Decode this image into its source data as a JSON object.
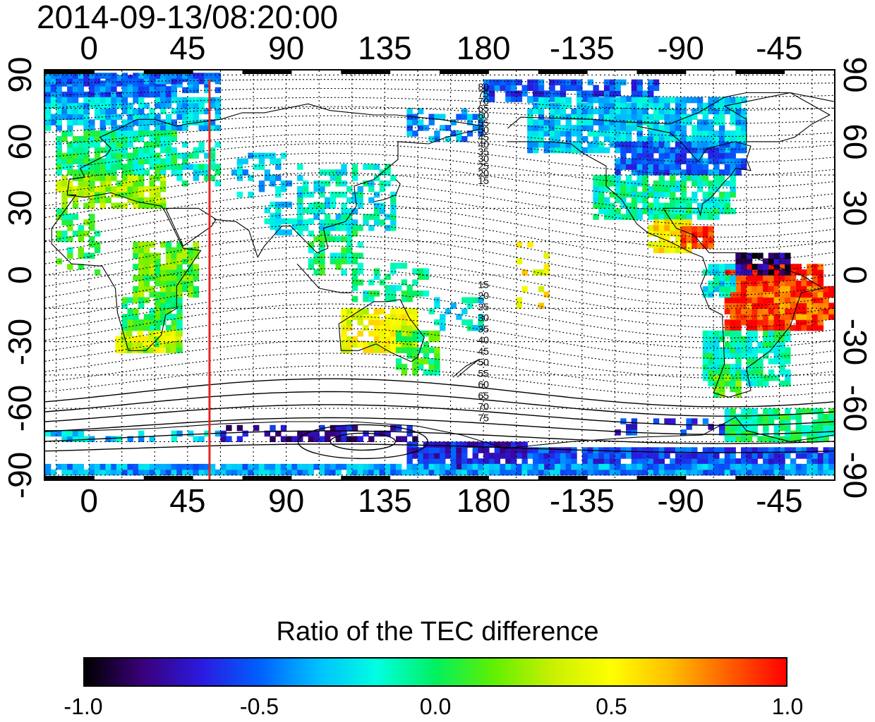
{
  "title": "2014-09-13/08:20:00",
  "longitude_ticks": [
    "0",
    "45",
    "90",
    "135",
    "180",
    "-135",
    "-90",
    "-45"
  ],
  "latitude_ticks": [
    "90",
    "60",
    "30",
    "0",
    "-30",
    "-60",
    "-90"
  ],
  "map": {
    "lon_range": [
      -20,
      340
    ],
    "lat_range": [
      -92,
      92
    ],
    "meridian_marker_lon": 55,
    "meridian_marker_color": "#e8231e",
    "contour_labels_north": [
      "80",
      "75",
      "70",
      "65",
      "60",
      "55",
      "50",
      "45",
      "40",
      "35",
      "30",
      "25",
      "20",
      "15"
    ],
    "contour_labels_south": [
      "15",
      "20",
      "25",
      "30",
      "35",
      "40",
      "45",
      "50",
      "55",
      "60",
      "65",
      "70",
      "75"
    ]
  },
  "colorbar": {
    "title": "Ratio of the TEC difference",
    "ticks": [
      "-1.0",
      "-0.5",
      "0.0",
      "0.5",
      "1.0"
    ],
    "range": [
      -1.0,
      1.0
    ],
    "colors": [
      "#000000",
      "#3a007a",
      "#2a1ae0",
      "#0060ff",
      "#00c0ff",
      "#00ffe0",
      "#00f060",
      "#60f000",
      "#c8f000",
      "#ffff00",
      "#ffc000",
      "#ff6000",
      "#ff0000"
    ]
  }
}
